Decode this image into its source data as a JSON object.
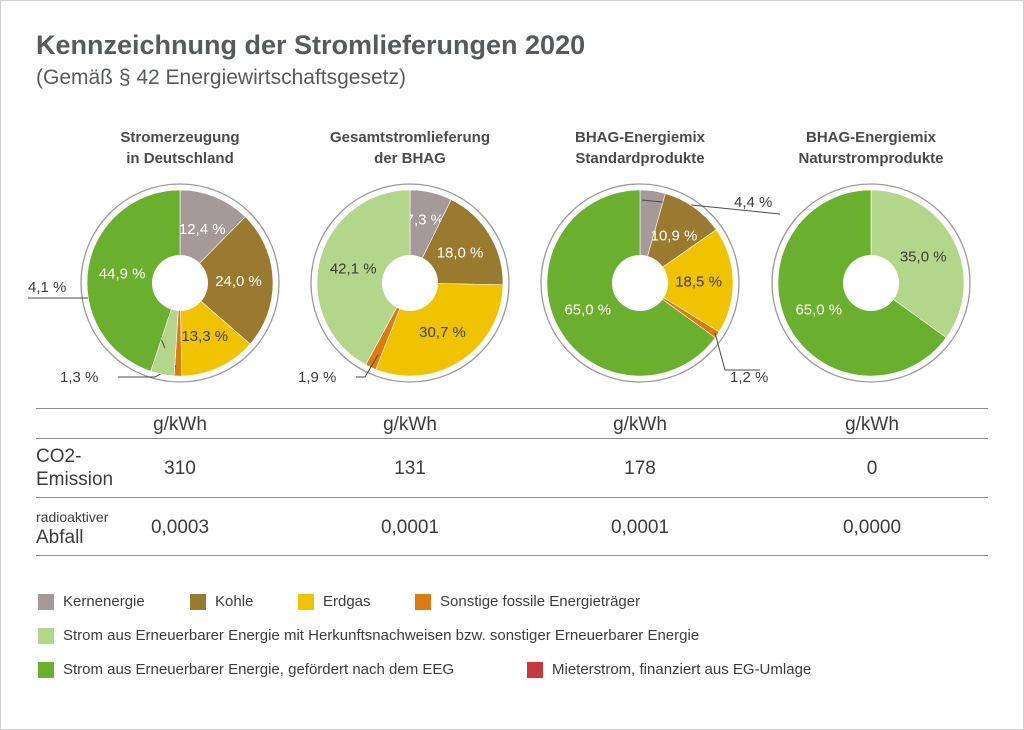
{
  "header": {
    "title": "Kennzeichnung der Stromlieferungen 2020",
    "subtitle": "(Gemäß § 42 Energiewirtschaftsgesetz)"
  },
  "colors": {
    "Kernenergie": "#a5999a",
    "Kohle": "#9a7a2f",
    "Erdgas": "#efc300",
    "Sonstige": "#dd7a10",
    "ErneuerbarHKN": "#b4d68b",
    "ErneuerbarEEG": "#6aaf2e",
    "Mieterstrom": "#c8383d"
  },
  "chart_data": [
    {
      "type": "pie",
      "title": "Stromerzeugung in Deutschland",
      "title_lines": [
        "Stromerzeugung",
        "in Deutschland"
      ],
      "slices": [
        {
          "category": "Kernenergie",
          "value": 12.4,
          "label": "12,4 %"
        },
        {
          "category": "Kohle",
          "value": 24.0,
          "label": "24,0 %"
        },
        {
          "category": "Erdgas",
          "value": 13.3,
          "label": "13,3 %"
        },
        {
          "category": "Sonstige",
          "value": 1.3,
          "label": "1,3 %"
        },
        {
          "category": "ErneuerbarHKN",
          "value": 4.1,
          "label": "4,1 %"
        },
        {
          "category": "ErneuerbarEEG",
          "value": 44.9,
          "label": "44,9 %"
        }
      ]
    },
    {
      "type": "pie",
      "title": "Gesamtstromlieferung der BHAG",
      "title_lines": [
        "Gesamtstromlieferung",
        "der BHAG"
      ],
      "slices": [
        {
          "category": "Kernenergie",
          "value": 7.3,
          "label": "7,3 %"
        },
        {
          "category": "Kohle",
          "value": 18.0,
          "label": "18,0 %"
        },
        {
          "category": "Erdgas",
          "value": 30.7,
          "label": "30,7 %"
        },
        {
          "category": "Sonstige",
          "value": 1.9,
          "label": "1,9 %"
        },
        {
          "category": "ErneuerbarHKN",
          "value": 42.1,
          "label": "42,1 %"
        }
      ]
    },
    {
      "type": "pie",
      "title": "BHAG-Energiemix Standardprodukte",
      "title_lines": [
        "BHAG-Energiemix",
        "Standardprodukte"
      ],
      "slices": [
        {
          "category": "Kernenergie",
          "value": 4.4,
          "label": "4,4 %"
        },
        {
          "category": "Kohle",
          "value": 10.9,
          "label": "10,9 %"
        },
        {
          "category": "Erdgas",
          "value": 18.5,
          "label": "18,5 %"
        },
        {
          "category": "Sonstige",
          "value": 1.2,
          "label": "1,2 %"
        },
        {
          "category": "ErneuerbarEEG",
          "value": 65.0,
          "label": "65,0 %"
        }
      ]
    },
    {
      "type": "pie",
      "title": "BHAG-Energiemix Naturstromprodukte",
      "title_lines": [
        "BHAG-Energiemix",
        "Naturstromprodukte"
      ],
      "slices": [
        {
          "category": "ErneuerbarHKN",
          "value": 35.0,
          "label": "35,0 %"
        },
        {
          "category": "ErneuerbarEEG",
          "value": 65.0,
          "label": "65,0 %"
        }
      ]
    }
  ],
  "table": {
    "unit": "g/kWh",
    "co2_label_line1": "CO2-",
    "co2_label_line2": "Emission",
    "waste_label_line1": "radioaktiver",
    "waste_label_line2": "Abfall",
    "co2_values": [
      "310",
      "131",
      "178",
      "0"
    ],
    "waste_values": [
      "0,0003",
      "0,0001",
      "0,0001",
      "0,0000"
    ]
  },
  "legend": {
    "Kernenergie": "Kernenergie",
    "Kohle": "Kohle",
    "Erdgas": "Erdgas",
    "Sonstige": "Sonstige fossile Energieträger",
    "ErneuerbarHKN": "Strom aus Erneuerbarer Energie mit Herkunftsnachweisen bzw. sonstiger Erneuerbarer Energie",
    "ErneuerbarEEG": "Strom aus Erneuerbarer Energie, gefördert nach dem EEG",
    "Mieterstrom": "Mieterstrom, finanziert aus EG-Umlage"
  }
}
